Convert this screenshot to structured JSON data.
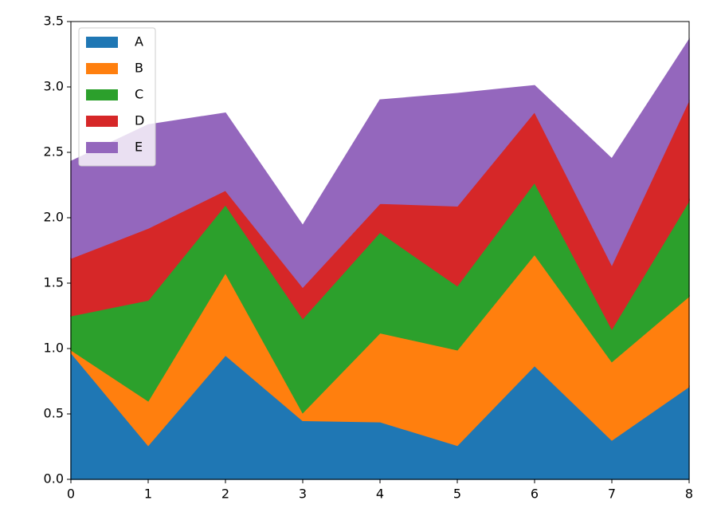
{
  "chart_data": {
    "type": "stacked_area",
    "x": [
      0,
      1,
      2,
      3,
      4,
      5,
      6,
      7,
      8
    ],
    "series": [
      {
        "name": "A",
        "color": "#1f77b4",
        "values": [
          0.97,
          0.26,
          0.95,
          0.45,
          0.44,
          0.26,
          0.87,
          0.3,
          0.71
        ]
      },
      {
        "name": "B",
        "color": "#ff7f0e",
        "values": [
          0.02,
          0.34,
          0.63,
          0.06,
          0.68,
          0.73,
          0.85,
          0.6,
          0.69
        ]
      },
      {
        "name": "C",
        "color": "#2ca02c",
        "values": [
          0.26,
          0.77,
          0.52,
          0.72,
          0.77,
          0.49,
          0.55,
          0.25,
          0.73
        ]
      },
      {
        "name": "D",
        "color": "#d62728",
        "values": [
          0.44,
          0.55,
          0.11,
          0.24,
          0.22,
          0.61,
          0.54,
          0.49,
          0.77
        ]
      },
      {
        "name": "E",
        "color": "#9467bd",
        "values": [
          0.74,
          0.79,
          0.59,
          0.47,
          0.79,
          0.86,
          0.2,
          0.81,
          0.46
        ]
      }
    ],
    "xlim": [
      0,
      8
    ],
    "xticks": [
      0,
      1,
      2,
      3,
      4,
      5,
      6,
      7,
      8
    ],
    "ylim": [
      0,
      3.5
    ],
    "yticks": [
      {
        "value": 0,
        "label": "0.0"
      },
      0.5,
      {
        "value": 1,
        "label": "1.0"
      },
      1.5,
      {
        "value": 2,
        "label": "2.0"
      },
      2.5,
      {
        "value": 3,
        "label": "3.0"
      },
      3.5
    ],
    "legend": "upper left"
  }
}
